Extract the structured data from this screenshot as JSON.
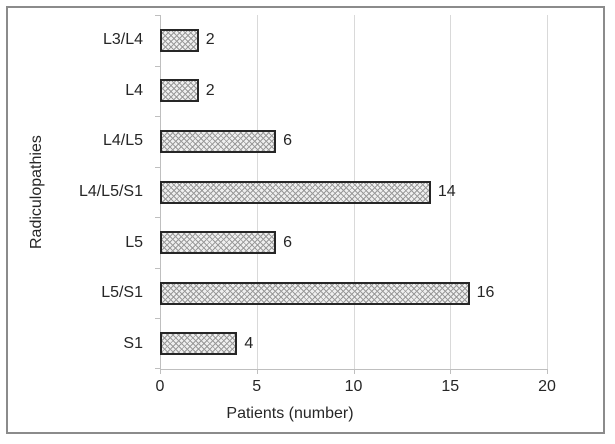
{
  "chart_data": {
    "type": "bar",
    "orientation": "horizontal",
    "categories": [
      "L3/L4",
      "L4",
      "L4/L5",
      "L4/L5/S1",
      "L5",
      "L5/S1",
      "S1"
    ],
    "values": [
      2,
      2,
      6,
      14,
      6,
      16,
      4
    ],
    "xlabel": "Patients (number)",
    "ylabel": "Radiculopathies",
    "xlim": [
      0,
      20
    ],
    "xticks": [
      0,
      5,
      10,
      15,
      20
    ],
    "grid": "vertical-gridlines-on",
    "legend": "none",
    "title": "",
    "style": {
      "bar_fill": "#efefef",
      "bar_pattern": "diamond-crosshatch",
      "bar_pattern_color": "#9a9a9a",
      "bar_border_color": "#262626",
      "gridline_color": "#d9d9d9",
      "axis_line_color": "#bfbfbf",
      "text_color": "#262626",
      "frame_border_color": "#8b8b8b"
    }
  }
}
